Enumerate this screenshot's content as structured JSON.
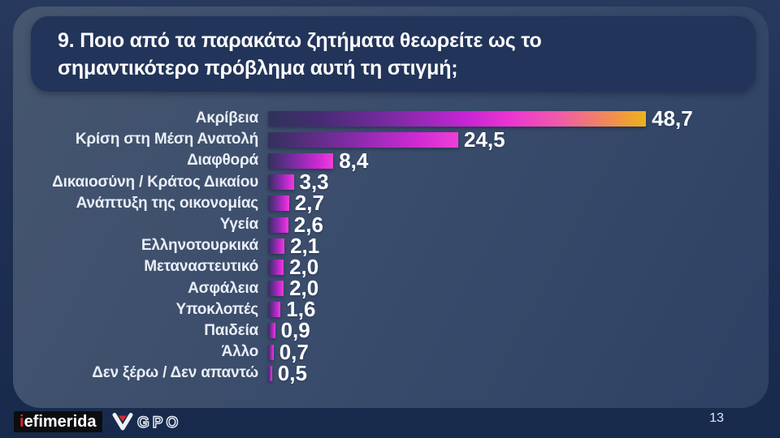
{
  "slide": {
    "title": "9. Ποιο από τα παρακάτω ζητήματα θεωρείτε ως το σημαντικότερο πρόβλημα αυτή τη στιγμή;",
    "page_number": "13"
  },
  "chart_data": {
    "type": "bar",
    "orientation": "horizontal",
    "title": "9. Ποιο από τα παρακάτω ζητήματα θεωρείτε ως το σημαντικότερο πρόβλημα αυτή τη στιγμή;",
    "categories": [
      "Ακρίβεια",
      "Κρίση στη Μέση Ανατολή",
      "Διαφθορά",
      "Δικαιοσύνη / Κράτος Δικαίου",
      "Ανάπτυξη της οικονομίας",
      "Υγεία",
      "Ελληνοτουρκικά",
      "Μεταναστευτικό",
      "Ασφάλεια",
      "Υποκλοπές",
      "Παιδεία",
      "Άλλο",
      "Δεν ξέρω / Δεν απαντώ"
    ],
    "values": [
      48.7,
      24.5,
      8.4,
      3.3,
      2.7,
      2.6,
      2.1,
      2.0,
      2.0,
      1.6,
      0.9,
      0.7,
      0.5
    ],
    "value_labels": [
      "48,7",
      "24,5",
      "8,4",
      "3,3",
      "2,7",
      "2,6",
      "2,1",
      "2,0",
      "2,0",
      "1,6",
      "0,9",
      "0,7",
      "0,5"
    ],
    "xlim": [
      0,
      50
    ],
    "grid": false,
    "legend": "none",
    "bar_colors": {
      "gradient_start": "#33305c",
      "gradient_mid": "#7c2ba2",
      "gradient_end": "#ee3fd8",
      "top_bar_end": "#ecb31c"
    }
  },
  "footer": {
    "iefimerida_i": "i",
    "iefimerida_rest": "efimerida",
    "gpo_label": "GPO"
  },
  "colors": {
    "background": "#1e3054",
    "panel": "#3b4d6c",
    "title_box": "#223459",
    "accent_magenta": "#ee3fd8",
    "accent_gold": "#ecb31c",
    "logo_red": "#d7282f"
  }
}
